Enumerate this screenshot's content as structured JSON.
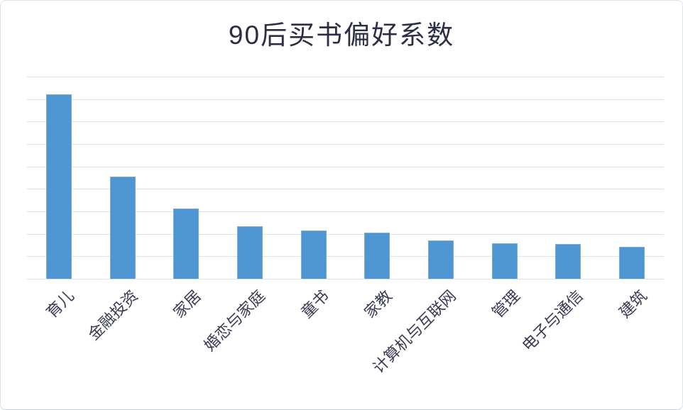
{
  "page": {
    "title": "90后买书偏好系数"
  },
  "colors": {
    "bar_fill": "#4D96D2",
    "bar_border": "#79ACDD",
    "gridline": "#DDE3EA",
    "title_text": "#2D2D45",
    "axis_label_text": "#3A3A55",
    "card_background": "#FFFFFF",
    "card_border": "#DFE3E9",
    "card_border_bottom": "#C9D2DC"
  },
  "chart_data": {
    "type": "bar",
    "title": "90后买书偏好系数",
    "categories": [
      "育儿",
      "金融投资",
      "家居",
      "婚恋与家庭",
      "童书",
      "家教",
      "计算机与互联网",
      "管理",
      "电子与通信",
      "建筑"
    ],
    "values": [
      4.1,
      2.27,
      1.56,
      1.17,
      1.07,
      1.03,
      0.85,
      0.79,
      0.78,
      0.71
    ],
    "xlabel": "",
    "ylabel": "",
    "ylim": [
      0,
      4.5
    ],
    "gridline_step": 0.5,
    "grid": "horizontal",
    "y_tick_labels": "none",
    "legend": "none",
    "x_label_rotation_deg": -45,
    "bar_color": "#4D96D2"
  }
}
